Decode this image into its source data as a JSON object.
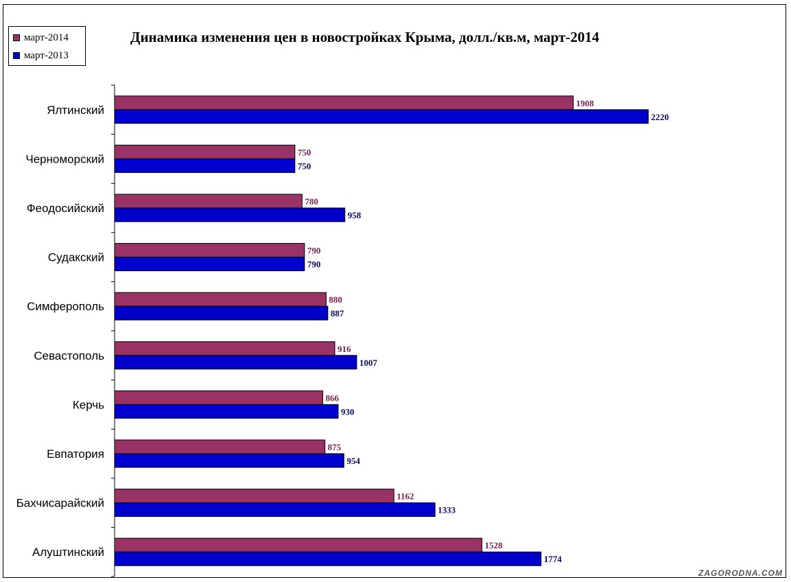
{
  "chart_data": {
    "type": "bar",
    "orientation": "horizontal",
    "title": "Динамика изменения цен в новостройках Крыма, долл./кв.м,  март-2014",
    "categories": [
      "Ялтинский",
      "Черноморский",
      "Феодосийский",
      "Судакский",
      "Симферополь",
      "Севастополь",
      "Керчь",
      "Евпатория",
      "Бахчисарайский",
      "Алуштинский"
    ],
    "series": [
      {
        "name": "март-2014",
        "color": "#993366",
        "label_color": "#7a1f55",
        "values": [
          1908,
          750,
          780,
          790,
          880,
          916,
          866,
          875,
          1162,
          1528
        ]
      },
      {
        "name": "март-2013",
        "color": "#0000cc",
        "label_color": "#0a0a6a",
        "values": [
          2220,
          750,
          958,
          790,
          887,
          1007,
          930,
          954,
          1333,
          1774
        ]
      }
    ],
    "xlim": [
      0,
      2800
    ],
    "legend_position": "top-left",
    "grid": false
  },
  "watermark": "ZAGORODNA.COM"
}
